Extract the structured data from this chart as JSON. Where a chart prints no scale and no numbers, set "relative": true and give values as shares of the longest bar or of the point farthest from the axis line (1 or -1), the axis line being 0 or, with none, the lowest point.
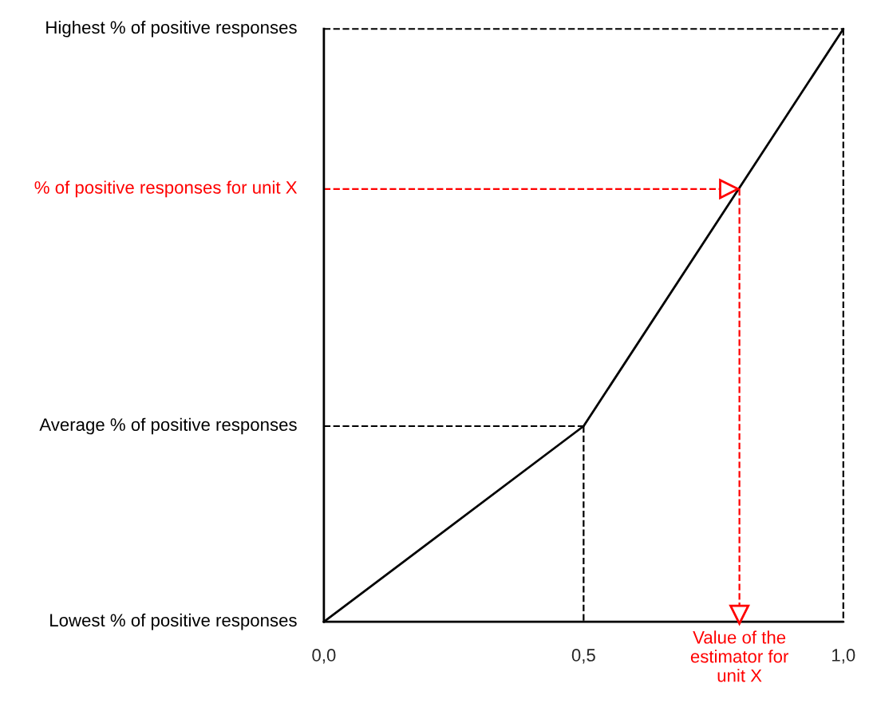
{
  "chart_data": {
    "type": "line",
    "relative": true,
    "series": [
      {
        "color": "#000000",
        "x": [
          0,
          0.5,
          1
        ],
        "values": [
          0,
          0.33,
          1
        ]
      },
      {
        "name": "Lowest % of positive responses",
        "color": "#000000",
        "line_style": "solid",
        "x": [
          0,
          1
        ],
        "values": [
          0,
          0
        ]
      },
      {
        "name": "Highest % of positive responses",
        "color": "#000000",
        "line_style": "dashed",
        "x": [
          0,
          1
        ],
        "values": [
          1,
          1
        ]
      },
      {
        "color": "#000000",
        "line_style": "dashed",
        "x": [
          1,
          1
        ],
        "values": [
          1,
          0
        ]
      },
      {
        "name": "Average % of positive responses",
        "color": "#000000",
        "line_style": "dashed",
        "x": [
          0,
          0.5
        ],
        "values": [
          0.33,
          0.33
        ]
      },
      {
        "color": "#000000",
        "line_style": "dashed",
        "x": [
          0.5,
          0.5
        ],
        "values": [
          0.33,
          0
        ]
      },
      {
        "name": "% of positive responses for unit X",
        "color": "#ff0000",
        "line_style": "dashed",
        "x": [
          0,
          0.8
        ],
        "values": [
          0.73,
          0.73
        ]
      },
      {
        "name": "Value of the\nestimator for\nunit X",
        "color": "#ff0000",
        "line_style": "dashed",
        "x": [
          0.8,
          0.8
        ],
        "values": [
          0.73,
          0
        ]
      }
    ],
    "xlim": [
      0,
      1
    ],
    "xticks": [
      {
        "value": 0,
        "label": "0,0"
      },
      {
        "value": 0.5,
        "label": "0,5"
      },
      {
        "value": 1,
        "label": "1,0"
      }
    ],
    "grid": false,
    "marker": "none",
    "line_style": "solid"
  }
}
